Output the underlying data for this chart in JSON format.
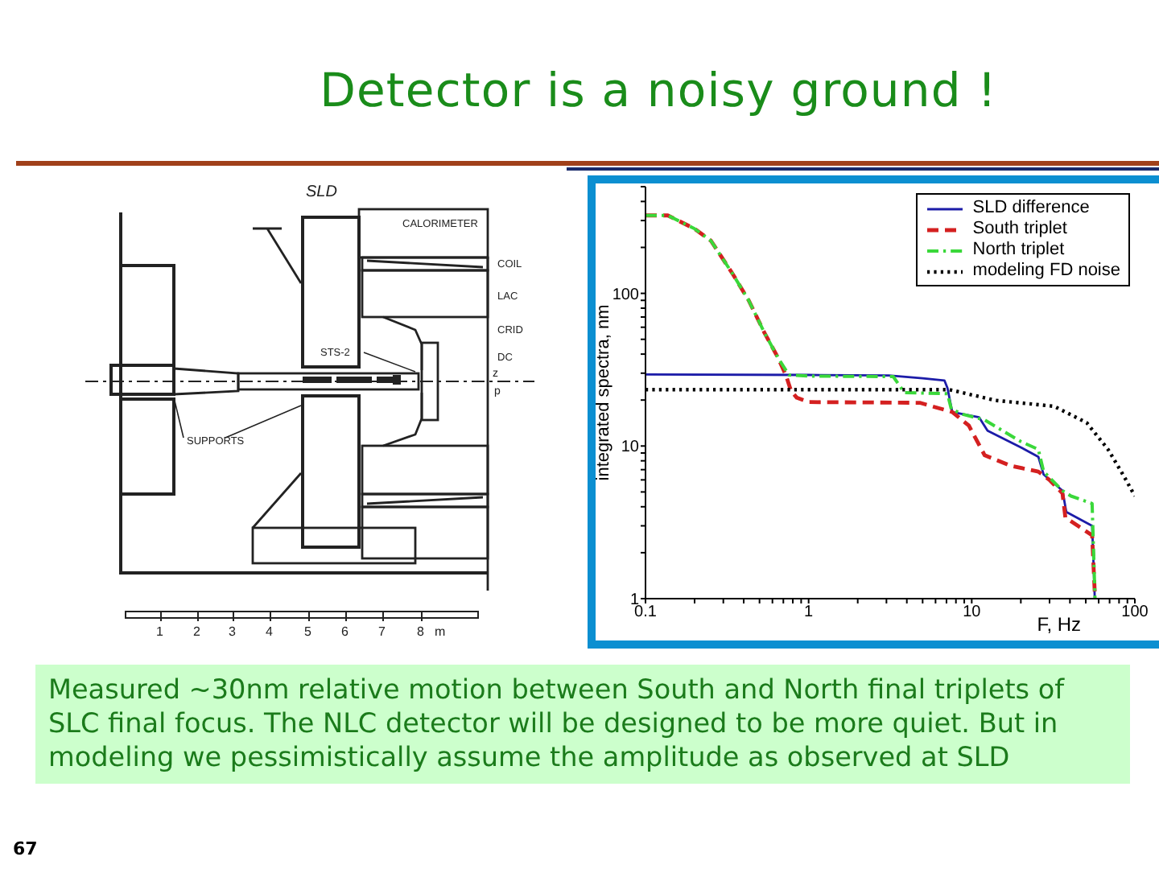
{
  "chart_data": {
    "type": "line",
    "title": "Detector is a noisy ground !",
    "xlabel": "F, Hz",
    "ylabel": "integrated spectra, nm",
    "log": "xy",
    "xlim": [
      0.1,
      100
    ],
    "ylim": [
      1,
      500
    ],
    "xticks": [
      0.1,
      {
        "value": 0.2,
        "label": null
      },
      {
        "value": 0.3,
        "label": null
      },
      {
        "value": 0.4,
        "label": null
      },
      {
        "value": 0.5,
        "label": null
      },
      {
        "value": 0.6,
        "label": null
      },
      {
        "value": 0.7,
        "label": null
      },
      {
        "value": 0.8,
        "label": null
      },
      {
        "value": 0.9,
        "label": null
      },
      1,
      {
        "value": 2,
        "label": null
      },
      {
        "value": 3,
        "label": null
      },
      {
        "value": 4,
        "label": null
      },
      {
        "value": 5,
        "label": null
      },
      {
        "value": 6,
        "label": null
      },
      {
        "value": 7,
        "label": null
      },
      {
        "value": 8,
        "label": null
      },
      {
        "value": 9,
        "label": null
      },
      10,
      {
        "value": 20,
        "label": null
      },
      {
        "value": 30,
        "label": null
      },
      {
        "value": 40,
        "label": null
      },
      {
        "value": 50,
        "label": null
      },
      {
        "value": 60,
        "label": null
      },
      {
        "value": 70,
        "label": null
      },
      {
        "value": 80,
        "label": null
      },
      {
        "value": 90,
        "label": null
      },
      100
    ],
    "yticks": [
      1,
      {
        "value": 2,
        "label": null
      },
      {
        "value": 3,
        "label": null
      },
      {
        "value": 4,
        "label": null
      },
      {
        "value": 5,
        "label": null
      },
      {
        "value": 6,
        "label": null
      },
      {
        "value": 7,
        "label": null
      },
      {
        "value": 8,
        "label": null
      },
      {
        "value": 9,
        "label": null
      },
      10,
      {
        "value": 20,
        "label": null
      },
      {
        "value": 30,
        "label": null
      },
      {
        "value": 40,
        "label": null
      },
      {
        "value": 50,
        "label": null
      },
      {
        "value": 60,
        "label": null
      },
      {
        "value": 70,
        "label": null
      },
      {
        "value": 80,
        "label": null
      },
      {
        "value": 90,
        "label": null
      },
      100,
      {
        "value": 200,
        "label": null
      },
      {
        "value": 300,
        "label": null
      },
      {
        "value": 400,
        "label": null
      },
      {
        "value": 500,
        "label": null
      }
    ],
    "legend": "top right",
    "series": [
      {
        "name": "SLD difference",
        "color": "#1c1ca8",
        "line_style": "solid",
        "x": [
          0.1,
          1,
          3.1,
          5,
          6.8,
          7.1,
          7.6,
          11.1,
          12.5,
          20,
          25.6,
          27.6,
          36,
          38,
          54.7,
          56.8
        ],
        "values": [
          29.4,
          29.2,
          29,
          27.8,
          26.9,
          24,
          16.7,
          15.4,
          12.6,
          9.8,
          8.5,
          6.5,
          5.1,
          3.7,
          3.0,
          1
        ]
      },
      {
        "name": "South triplet",
        "color": "#d42020",
        "line_style": "dashed",
        "x": [
          0.1,
          0.137,
          0.2,
          0.252,
          0.341,
          0.429,
          0.537,
          0.648,
          0.727,
          0.78,
          0.847,
          1,
          4.8,
          7.6,
          9.6,
          12,
          17.5,
          25.6,
          29.9,
          36,
          37.5,
          47,
          54.7,
          57
        ],
        "values": [
          324,
          324,
          265,
          221,
          135,
          90,
          55,
          38,
          29,
          23,
          20.7,
          19.4,
          19.2,
          16.7,
          13.6,
          8.7,
          7.4,
          6.8,
          6.0,
          4.9,
          3.4,
          2.9,
          2.6,
          1
        ]
      },
      {
        "name": "North triplet",
        "color": "#3ad83a",
        "line_style": "dashdot",
        "x": [
          0.1,
          0.137,
          0.2,
          0.252,
          0.341,
          0.429,
          0.537,
          0.648,
          0.757,
          1,
          3.3,
          3.86,
          7.1,
          7.5,
          8.9,
          12,
          20,
          25.6,
          27.6,
          36,
          40.6,
          54.7,
          57
        ],
        "values": [
          324,
          324,
          265,
          221,
          135,
          90,
          55,
          38,
          29.2,
          28.7,
          28.5,
          22.4,
          22,
          17.4,
          16.1,
          14.8,
          10.7,
          9.5,
          6.8,
          5.1,
          4.7,
          4.2,
          1
        ]
      },
      {
        "name": "modeling FD noise",
        "color": "#000000",
        "line_style": "dotted",
        "x": [
          0.1,
          7.3,
          14,
          32,
          50.7,
          68.5,
          86,
          100
        ],
        "values": [
          23.4,
          23.4,
          19.9,
          18.2,
          14.2,
          9.5,
          6.3,
          4.7
        ]
      }
    ],
    "annotations": [
      "Measured ~30nm relative motion between South and North final triplets of SLC final focus. The NLC detector will be designed to be more quiet. But in modeling we pessimistically assume the amplitude as observed at SLD",
      "67",
      "SLD",
      "CALORIMETER",
      "COIL",
      "LAC",
      "CRID",
      "DC",
      "STS-2",
      "SUPPORTS",
      "z",
      "p",
      "1 2 3 4 5 6 7 8 m"
    ]
  }
}
